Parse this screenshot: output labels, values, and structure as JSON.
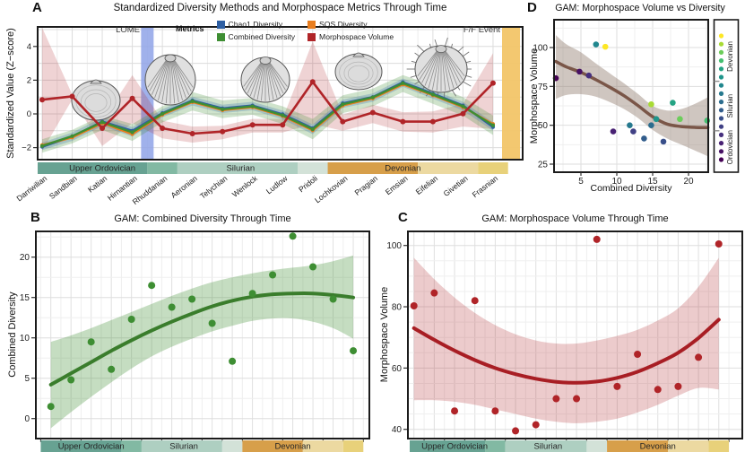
{
  "panels": {
    "a": "A",
    "b": "B",
    "c": "C",
    "d": "D"
  },
  "stages": [
    "Darriwilian",
    "Sandbian",
    "Katian",
    "Hirnantian",
    "Rhuddanian",
    "Aeronian",
    "Telychian",
    "Wenlock",
    "Ludlow",
    "Pridoli",
    "Lochkovian",
    "Pragian",
    "Emsian",
    "Eifelian",
    "Givetian",
    "Frasnian"
  ],
  "stage_colors": [
    "#440154",
    "#471164",
    "#482173",
    "#46307e",
    "#404085",
    "#394f8a",
    "#325d8c",
    "#2b6c8e",
    "#26798e",
    "#21878e",
    "#1f958b",
    "#24a383",
    "#44bf70",
    "#6ccd5a",
    "#a8db34",
    "#fde725"
  ],
  "period_bands": [
    {
      "label": "Upper Ordovician",
      "from": 0,
      "to": 4,
      "color": "#67a292"
    },
    {
      "label": "",
      "from": 4,
      "to": 5,
      "color": "#82b9a3"
    },
    {
      "label": "Silurian",
      "from": 5,
      "to": 9,
      "color": "#aecfc1"
    },
    {
      "label": "",
      "from": 9,
      "to": 10,
      "color": "#d3e2d8"
    },
    {
      "label": "Devonian",
      "from": 10,
      "to": 13,
      "color": "#d79f4a"
    },
    {
      "label": "",
      "from": 13,
      "to": 15,
      "color": "#ecd9a1"
    },
    {
      "label": "",
      "from": 15,
      "to": 16,
      "color": "#e8d17a"
    }
  ],
  "band_labels": [
    {
      "text": "Upper Ordovician",
      "at_stage": 2.0
    },
    {
      "text": "Silurian",
      "at_stage": 6.6
    },
    {
      "text": "Devonian",
      "at_stage": 12.0
    }
  ],
  "period_legend": {
    "labels": [
      "Ordovician",
      "Silurian",
      "Devonian"
    ]
  },
  "chart_data": [
    {
      "id": "A",
      "type": "line",
      "title": "Standardized Diversity Methods and Morphospace Metrics Through Time",
      "ylabel": "Standardized Value (Z−score)",
      "legend_title": "Metrics",
      "yticks": [
        -2,
        0,
        2,
        4
      ],
      "ylim": [
        -2.75,
        5.2
      ],
      "series": [
        {
          "name": "Chao1 Diversity",
          "color": "#2e5fa3",
          "values": [
            -1.95,
            -1.35,
            -0.45,
            -1.0,
            0.05,
            0.8,
            0.33,
            0.5,
            -0.02,
            -0.85,
            0.63,
            1.0,
            1.88,
            1.2,
            0.5,
            -0.78
          ]
        },
        {
          "name": "Combined Diversity",
          "color": "#3e8e33",
          "values": [
            -1.9,
            -1.32,
            -0.49,
            -1.09,
            0.01,
            0.75,
            0.27,
            0.45,
            -0.08,
            -0.91,
            0.57,
            0.98,
            1.82,
            1.15,
            0.45,
            -0.68
          ]
        },
        {
          "name": "SQS Diversity",
          "color": "#e87d1e",
          "values": [
            -1.85,
            -1.4,
            -0.55,
            -1.2,
            -0.05,
            0.7,
            0.22,
            0.4,
            -0.13,
            -0.98,
            0.5,
            0.92,
            1.75,
            1.1,
            0.4,
            -0.6
          ]
        },
        {
          "name": "Morphospace Volume",
          "color": "#b02428",
          "values": [
            0.84,
            1.04,
            -0.85,
            0.92,
            -0.85,
            -1.17,
            -1.05,
            -0.65,
            -0.65,
            1.9,
            -0.46,
            0.08,
            -0.46,
            -0.46,
            0.01,
            1.83
          ]
        }
      ],
      "ribbons": [
        {
          "series": "Morphospace Volume",
          "color": "#b02428",
          "opacity": 0.2,
          "upper": [
            5.12,
            1.15,
            -0.4,
            2.3,
            -0.4,
            -0.75,
            -0.7,
            -0.3,
            -0.3,
            4.3,
            -0.05,
            0.55,
            0.1,
            0.15,
            0.6,
            3.6
          ],
          "lower": [
            -2.2,
            0.85,
            -1.9,
            -0.55,
            -1.45,
            -1.7,
            -1.5,
            -1.1,
            -1.1,
            -0.6,
            -1.0,
            -0.55,
            -1.05,
            -1.1,
            -0.75,
            -0.9
          ]
        },
        {
          "series": "Combined Diversity",
          "color": "#3e8e33",
          "opacity": 0.25,
          "upper": [
            -1.5,
            -0.95,
            -0.1,
            -0.6,
            0.45,
            1.3,
            0.8,
            0.95,
            0.45,
            -0.3,
            1.1,
            1.5,
            2.3,
            1.7,
            1.0,
            -0.1
          ],
          "lower": [
            -2.3,
            -1.75,
            -0.95,
            -1.6,
            -0.5,
            0.2,
            -0.25,
            -0.05,
            -0.6,
            -1.5,
            0.05,
            0.45,
            1.3,
            0.6,
            -0.1,
            -1.25
          ]
        },
        {
          "series": "Chao1 Diversity",
          "color": "#4a7fae",
          "opacity": 0.3,
          "upper": [
            -1.7,
            -1.1,
            -0.22,
            -0.78,
            0.28,
            1.02,
            0.55,
            0.72,
            0.2,
            -0.62,
            0.85,
            1.22,
            2.1,
            1.42,
            0.72,
            -0.5
          ],
          "lower": [
            -2.15,
            -1.6,
            -0.72,
            -1.35,
            -0.2,
            0.5,
            0.05,
            0.22,
            -0.32,
            -1.2,
            0.35,
            0.72,
            1.6,
            0.9,
            0.2,
            -1.0
          ]
        }
      ],
      "annotations": [
        {
          "label": "LOME",
          "type": "vband",
          "between_stages": [
            3,
            4
          ],
          "color": "#8fa3e8",
          "opacity": 0.85
        },
        {
          "label": "F/F Event",
          "type": "vband",
          "at": "right-edge",
          "color": "#f2c568",
          "opacity": 0.95
        }
      ]
    },
    {
      "id": "B",
      "type": "scatter_gam",
      "title": "GAM: Combined Diversity Through Time",
      "ylabel": "Combined Diversity",
      "yticks": [
        0,
        5,
        10,
        15,
        20
      ],
      "ylim": [
        -2.5,
        23.3
      ],
      "point_color": "#3e8e33",
      "line_color": "#3a7d2c",
      "ribbon_color": "#3e8e33",
      "ribbon_opacity": 0.3,
      "values": [
        1.5,
        4.8,
        9.5,
        6.1,
        12.3,
        16.5,
        13.8,
        14.8,
        11.8,
        7.1,
        15.5,
        17.8,
        22.6,
        18.8,
        14.8,
        8.4
      ],
      "gam": [
        4.2,
        5.6,
        7.0,
        8.4,
        9.7,
        10.9,
        12.0,
        13.0,
        13.9,
        14.6,
        15.1,
        15.4,
        15.5,
        15.5,
        15.3,
        15.0
      ],
      "ribbon_upper": [
        9.5,
        10.3,
        11.2,
        12.2,
        13.2,
        14.2,
        15.2,
        16.1,
        16.9,
        17.5,
        18.0,
        18.4,
        18.7,
        19.0,
        19.5,
        20.2
      ],
      "ribbon_lower": [
        -1.2,
        0.8,
        2.7,
        4.5,
        6.2,
        7.7,
        8.9,
        9.9,
        10.8,
        11.5,
        12.1,
        12.4,
        12.4,
        12.0,
        11.2,
        9.9
      ]
    },
    {
      "id": "C",
      "type": "scatter_gam",
      "title": "GAM: Morphospace Volume Through Time",
      "ylabel": "Morphospace Volume",
      "yticks": [
        40,
        60,
        80,
        100
      ],
      "ylim": [
        37,
        104.5
      ],
      "point_color": "#b02428",
      "line_color": "#a81e24",
      "ribbon_color": "#b02428",
      "ribbon_opacity": 0.24,
      "values": [
        80.3,
        84.5,
        46,
        82,
        46,
        39.5,
        41.5,
        50,
        50,
        102,
        54,
        64.5,
        53,
        54,
        63.5,
        100.5
      ],
      "gam": [
        73,
        69.2,
        65.7,
        62.6,
        60,
        58,
        56.5,
        55.5,
        55.2,
        55.6,
        56.8,
        58.8,
        61.6,
        65,
        69.8,
        75.8
      ],
      "ribbon_upper": [
        96,
        89,
        83,
        78,
        74,
        71,
        69,
        68,
        68,
        69,
        70.5,
        72.5,
        75.5,
        79.5,
        86.5,
        96
      ],
      "ribbon_lower": [
        49.5,
        49.5,
        49,
        48,
        46.5,
        45,
        43.5,
        42.5,
        42,
        42.5,
        43.5,
        45.5,
        48,
        51,
        53.5,
        53
      ]
    },
    {
      "id": "D",
      "type": "scatter_gam_xy",
      "title": "GAM: Morphospace Volume vs Diversity",
      "xlabel": "Combined Diversity",
      "ylabel": "Morphospace Volume",
      "xticks": [
        5,
        10,
        15,
        20
      ],
      "yticks": [
        25,
        50,
        75,
        100
      ],
      "xlim": [
        1.2,
        23.3
      ],
      "ylim": [
        22,
        112
      ],
      "line_color": "#7a5648",
      "ribbon_color": "#8d7668",
      "ribbon_opacity": 0.42,
      "points_x": [
        1.5,
        4.8,
        9.5,
        6.1,
        12.3,
        16.5,
        13.8,
        14.8,
        11.8,
        7.1,
        15.5,
        17.8,
        22.6,
        18.8,
        14.8,
        8.4
      ],
      "points_y": [
        80.3,
        84.5,
        46,
        82,
        46,
        39.5,
        41.5,
        50,
        50,
        102,
        54,
        64.5,
        53,
        54,
        63.5,
        100.5
      ],
      "gam_x": [
        1.5,
        3,
        5,
        7,
        9,
        11,
        13,
        15,
        17,
        19,
        21,
        22.7
      ],
      "gam_y": [
        91,
        87.5,
        84,
        79.5,
        74.5,
        69,
        62.5,
        55.5,
        50.8,
        49.2,
        48.6,
        48.5
      ],
      "ribbon_upper": [
        108,
        102,
        97,
        90,
        83.5,
        77,
        70,
        62.5,
        59.5,
        60.5,
        64,
        68
      ],
      "ribbon_lower": [
        67,
        69.5,
        70,
        68.5,
        65,
        60.5,
        54.5,
        47,
        41.5,
        37.5,
        33.5,
        30
      ]
    }
  ]
}
